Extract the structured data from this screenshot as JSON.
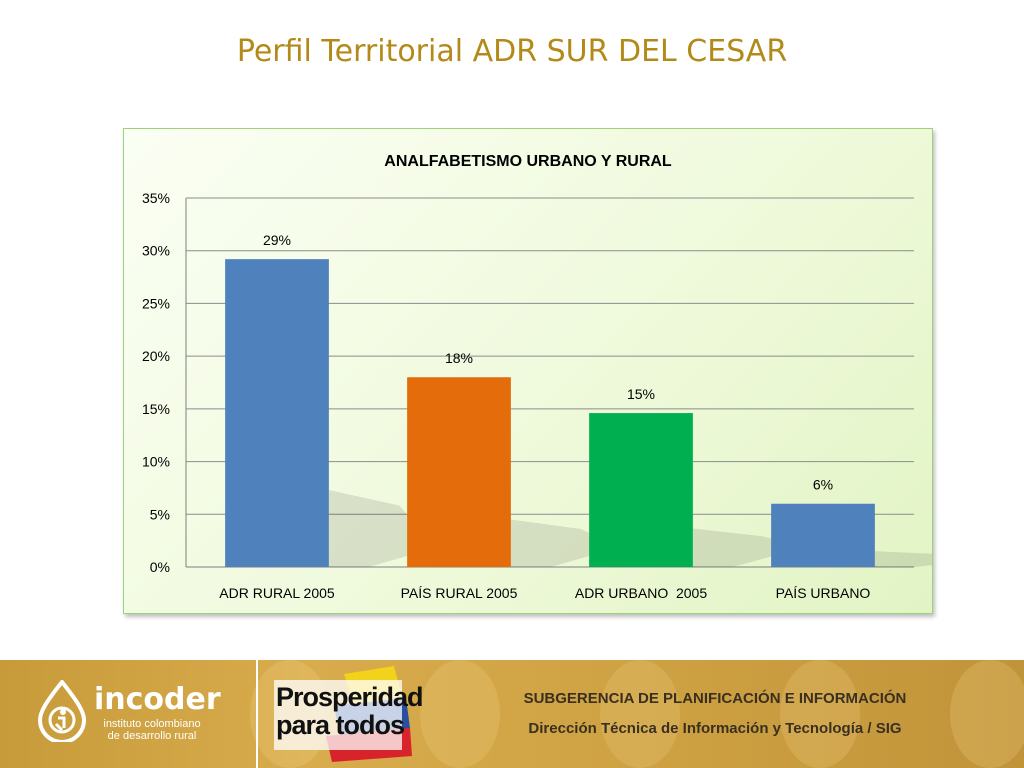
{
  "slide": {
    "title": "Perfil Territorial ADR SUR DEL CESAR"
  },
  "chart_data": {
    "type": "bar",
    "title": "ANALFABETISMO URBANO Y RURAL",
    "categories": [
      "ADR RURAL 2005",
      "PAÍS RURAL 2005",
      "ADR URBANO  2005",
      "PAÍS URBANO"
    ],
    "values": [
      29.2,
      18.0,
      14.6,
      6.0
    ],
    "data_labels": [
      "29%",
      "18%",
      "15%",
      "6%"
    ],
    "colors": [
      "#4f81bd",
      "#e46c0a",
      "#00b050",
      "#4f81bd"
    ],
    "ylim": [
      0,
      35
    ],
    "yticks": [
      0,
      5,
      10,
      15,
      20,
      25,
      30,
      35
    ],
    "ytick_labels": [
      "0%",
      "5%",
      "10%",
      "15%",
      "20%",
      "25%",
      "30%",
      "35%"
    ],
    "xlabel": "",
    "ylabel": "",
    "grid": true
  },
  "footer": {
    "incoder_name": "incoder",
    "incoder_sub_1": "instituto colombiano",
    "incoder_sub_2": "de desarrollo rural",
    "prosperidad_1": "Prosperidad",
    "prosperidad_2": "para todos",
    "subgerencia": "SUBGERENCIA DE PLANIFICACIÓN E INFORMACIÓN",
    "direccion": "Dirección Técnica de Información y Tecnología / SIG"
  }
}
